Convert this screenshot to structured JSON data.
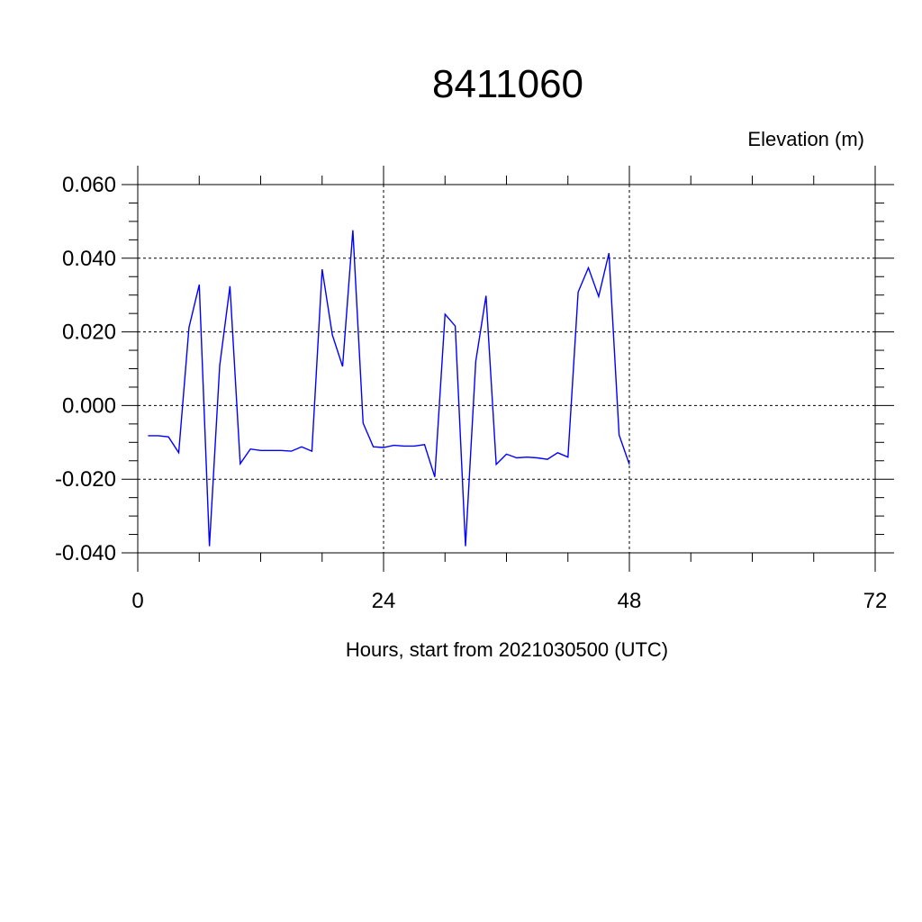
{
  "chart_data": {
    "type": "line",
    "title": "8411060",
    "ylabel": "Elevation (m)",
    "xlabel": "Hours, start from 2021030500 (UTC)",
    "xlim": [
      0,
      72
    ],
    "ylim": [
      -0.04,
      0.06
    ],
    "xticks": [
      0,
      24,
      48,
      72
    ],
    "xtick_labels": [
      "0",
      "24",
      "48",
      "72"
    ],
    "yticks": [
      -0.04,
      -0.02,
      0.0,
      0.02,
      0.04,
      0.06
    ],
    "ytick_labels": [
      "-0.040",
      "-0.020",
      "0.000",
      "0.020",
      "0.040",
      "0.060"
    ],
    "grid": true,
    "series": [
      {
        "color": "#0000ff",
        "x": [
          1,
          2,
          3,
          4,
          5,
          6,
          7,
          8,
          9,
          10,
          11,
          12,
          13,
          14,
          15,
          16,
          17,
          18,
          19,
          20,
          21,
          22,
          23,
          24,
          25,
          26,
          27,
          28,
          29,
          30,
          31,
          32,
          33,
          34,
          35,
          36,
          37,
          38,
          39,
          40,
          41,
          42,
          43,
          44,
          45,
          46,
          47,
          48
        ],
        "y": [
          -0.0082,
          -0.0082,
          -0.0085,
          -0.0128,
          0.0212,
          0.0328,
          -0.0382,
          0.0108,
          0.0324,
          -0.0158,
          -0.0118,
          -0.0122,
          -0.0122,
          -0.0122,
          -0.0124,
          -0.0112,
          -0.0124,
          0.037,
          0.0192,
          0.0106,
          0.0476,
          -0.0048,
          -0.0112,
          -0.0114,
          -0.0108,
          -0.011,
          -0.011,
          -0.0106,
          -0.0194,
          0.0248,
          0.0216,
          -0.0382,
          0.012,
          0.0298,
          -0.016,
          -0.0132,
          -0.0142,
          -0.014,
          -0.0142,
          -0.0146,
          -0.0128,
          -0.014,
          0.0308,
          0.0374,
          0.0296,
          0.0414,
          -0.008,
          -0.016
        ]
      }
    ]
  }
}
